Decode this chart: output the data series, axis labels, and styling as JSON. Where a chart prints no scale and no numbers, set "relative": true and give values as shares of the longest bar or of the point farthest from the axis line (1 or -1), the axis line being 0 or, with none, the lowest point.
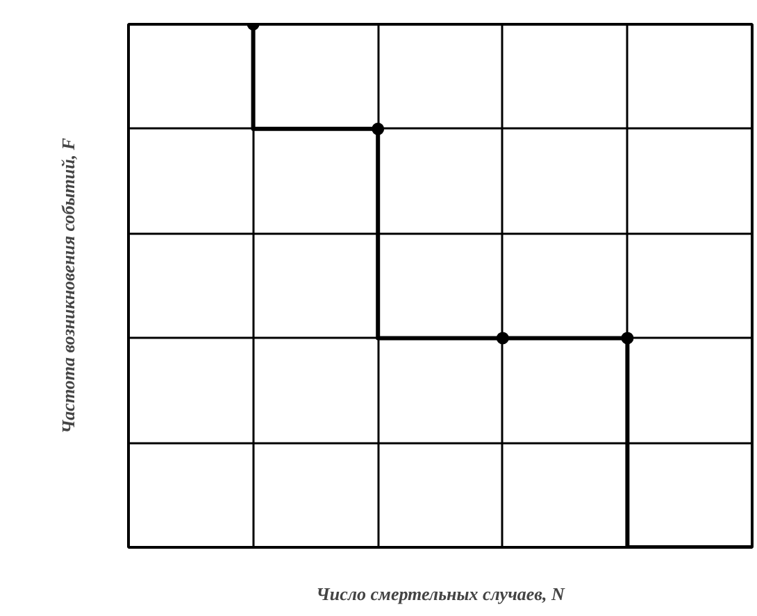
{
  "chart_data": {
    "type": "step",
    "relative": true,
    "categories": [
      null,
      null,
      null,
      null,
      null,
      null
    ],
    "series": [
      {
        "color": "#000000",
        "values": [
          null,
          1,
          0.8,
          0.4,
          0.4,
          0
        ]
      }
    ],
    "xlabel": "Число смертельных случаев, N",
    "ylabel": "Частота возникновения событий, F",
    "grid": true,
    "marker": "circle",
    "line_style": "solid",
    "tick_labels": false
  }
}
